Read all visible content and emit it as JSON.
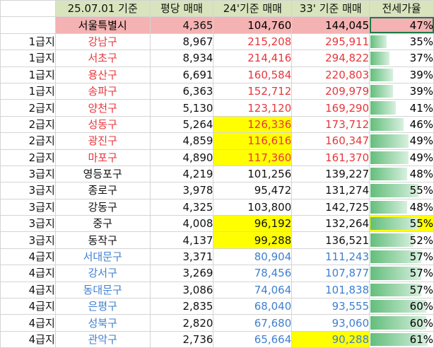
{
  "sheet": {
    "headers": [
      "",
      "25.07.01 기준",
      "평당 매매",
      "24'기준 매매",
      "33' 기준 매매",
      "전세가율"
    ],
    "seoul": {
      "grade": "",
      "name": "서울특별시",
      "ppy": "4,365",
      "p24": "104,760",
      "p33": "144,045",
      "ratio": "47%",
      "ratio_value": 47
    },
    "rows": [
      {
        "grade": "1급지",
        "name": "강남구",
        "ppy": "8,967",
        "p24": "215,208",
        "p33": "295,911",
        "ratio": "35%",
        "ratio_value": 35,
        "color": "red",
        "hl24": false,
        "hl33": false,
        "hlratio": false
      },
      {
        "grade": "1급지",
        "name": "서초구",
        "ppy": "8,934",
        "p24": "214,416",
        "p33": "294,822",
        "ratio": "37%",
        "ratio_value": 37,
        "color": "red",
        "hl24": false,
        "hl33": false,
        "hlratio": false
      },
      {
        "grade": "1급지",
        "name": "용산구",
        "ppy": "6,691",
        "p24": "160,584",
        "p33": "220,803",
        "ratio": "39%",
        "ratio_value": 39,
        "color": "red",
        "hl24": false,
        "hl33": false,
        "hlratio": false
      },
      {
        "grade": "1급지",
        "name": "송파구",
        "ppy": "6,363",
        "p24": "152,712",
        "p33": "209,979",
        "ratio": "39%",
        "ratio_value": 39,
        "color": "red",
        "hl24": false,
        "hl33": false,
        "hlratio": false
      },
      {
        "grade": "2급지",
        "name": "양천구",
        "ppy": "5,130",
        "p24": "123,120",
        "p33": "169,290",
        "ratio": "41%",
        "ratio_value": 41,
        "color": "red",
        "hl24": false,
        "hl33": false,
        "hlratio": false
      },
      {
        "grade": "2급지",
        "name": "성동구",
        "ppy": "5,264",
        "p24": "126,336",
        "p33": "173,712",
        "ratio": "46%",
        "ratio_value": 46,
        "color": "red",
        "hl24": true,
        "hl33": false,
        "hlratio": false
      },
      {
        "grade": "2급지",
        "name": "광진구",
        "ppy": "4,859",
        "p24": "116,616",
        "p33": "160,347",
        "ratio": "49%",
        "ratio_value": 49,
        "color": "red",
        "hl24": true,
        "hl33": false,
        "hlratio": false
      },
      {
        "grade": "2급지",
        "name": "마포구",
        "ppy": "4,890",
        "p24": "117,360",
        "p33": "161,370",
        "ratio": "49%",
        "ratio_value": 49,
        "color": "red",
        "hl24": true,
        "hl33": false,
        "hlratio": false
      },
      {
        "grade": "3급지",
        "name": "영등포구",
        "ppy": "4,219",
        "p24": "101,256",
        "p33": "139,227",
        "ratio": "48%",
        "ratio_value": 48,
        "color": "black",
        "hl24": false,
        "hl33": false,
        "hlratio": false
      },
      {
        "grade": "3급지",
        "name": "종로구",
        "ppy": "3,978",
        "p24": "95,472",
        "p33": "131,274",
        "ratio": "55%",
        "ratio_value": 55,
        "color": "black",
        "hl24": false,
        "hl33": false,
        "hlratio": false
      },
      {
        "grade": "3급지",
        "name": "강동구",
        "ppy": "4,325",
        "p24": "103,800",
        "p33": "142,725",
        "ratio": "48%",
        "ratio_value": 48,
        "color": "black",
        "hl24": false,
        "hl33": false,
        "hlratio": false
      },
      {
        "grade": "3급지",
        "name": "중구",
        "ppy": "4,008",
        "p24": "96,192",
        "p33": "132,264",
        "ratio": "55%",
        "ratio_value": 55,
        "color": "black",
        "hl24": true,
        "hl33": false,
        "hlratio": true
      },
      {
        "grade": "3급지",
        "name": "동작구",
        "ppy": "4,137",
        "p24": "99,288",
        "p33": "136,521",
        "ratio": "52%",
        "ratio_value": 52,
        "color": "black",
        "hl24": true,
        "hl33": false,
        "hlratio": false
      },
      {
        "grade": "4급지",
        "name": "서대문구",
        "ppy": "3,371",
        "p24": "80,904",
        "p33": "111,243",
        "ratio": "57%",
        "ratio_value": 57,
        "color": "blue",
        "hl24": false,
        "hl33": false,
        "hlratio": false
      },
      {
        "grade": "4급지",
        "name": "강서구",
        "ppy": "3,269",
        "p24": "78,456",
        "p33": "107,877",
        "ratio": "57%",
        "ratio_value": 57,
        "color": "blue",
        "hl24": false,
        "hl33": false,
        "hlratio": false
      },
      {
        "grade": "4급지",
        "name": "동대문구",
        "ppy": "3,086",
        "p24": "74,064",
        "p33": "101,838",
        "ratio": "57%",
        "ratio_value": 57,
        "color": "blue",
        "hl24": false,
        "hl33": false,
        "hlratio": false
      },
      {
        "grade": "4급지",
        "name": "은평구",
        "ppy": "2,835",
        "p24": "68,040",
        "p33": "93,555",
        "ratio": "60%",
        "ratio_value": 60,
        "color": "blue",
        "hl24": false,
        "hl33": false,
        "hlratio": false
      },
      {
        "grade": "4급지",
        "name": "성북구",
        "ppy": "2,820",
        "p24": "67,680",
        "p33": "93,060",
        "ratio": "60%",
        "ratio_value": 60,
        "color": "blue",
        "hl24": false,
        "hl33": false,
        "hlratio": false
      },
      {
        "grade": "4급지",
        "name": "관악구",
        "ppy": "2,736",
        "p24": "65,664",
        "p33": "90,288",
        "ratio": "61%",
        "ratio_value": 61,
        "color": "blue",
        "hl24": false,
        "hl33": true,
        "hlratio": false
      }
    ]
  }
}
